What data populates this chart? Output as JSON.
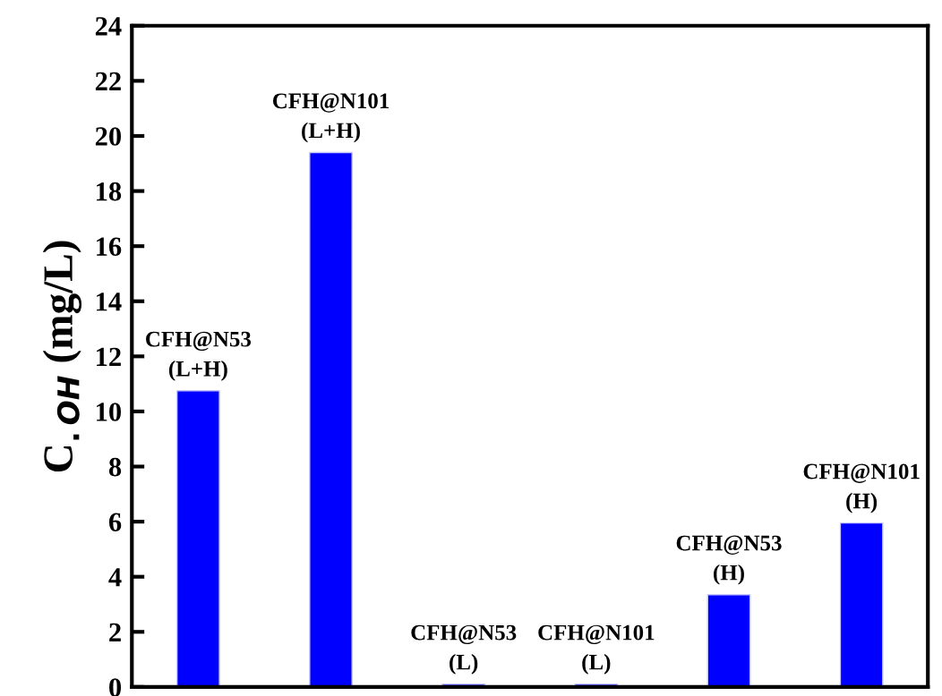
{
  "chart_data": {
    "type": "bar",
    "ylabel": "C$_{.OH}$ (mg/L)",
    "categories": [
      "CFH@N53\n(L+H)",
      "CFH@N101\n(L+H)",
      "CFH@N53\n(L)",
      "CFH@N101\n(L)",
      "CFH@N53\n(H)",
      "CFH@N101\n(H)"
    ],
    "values": [
      10.75,
      19.4,
      0.1,
      0.1,
      3.35,
      5.95
    ],
    "color": "#0000ff",
    "ylim": [
      0,
      24
    ],
    "yticks": [
      0,
      2,
      4,
      6,
      8,
      10,
      12,
      14,
      16,
      18,
      20,
      22,
      24
    ],
    "grid": false
  }
}
